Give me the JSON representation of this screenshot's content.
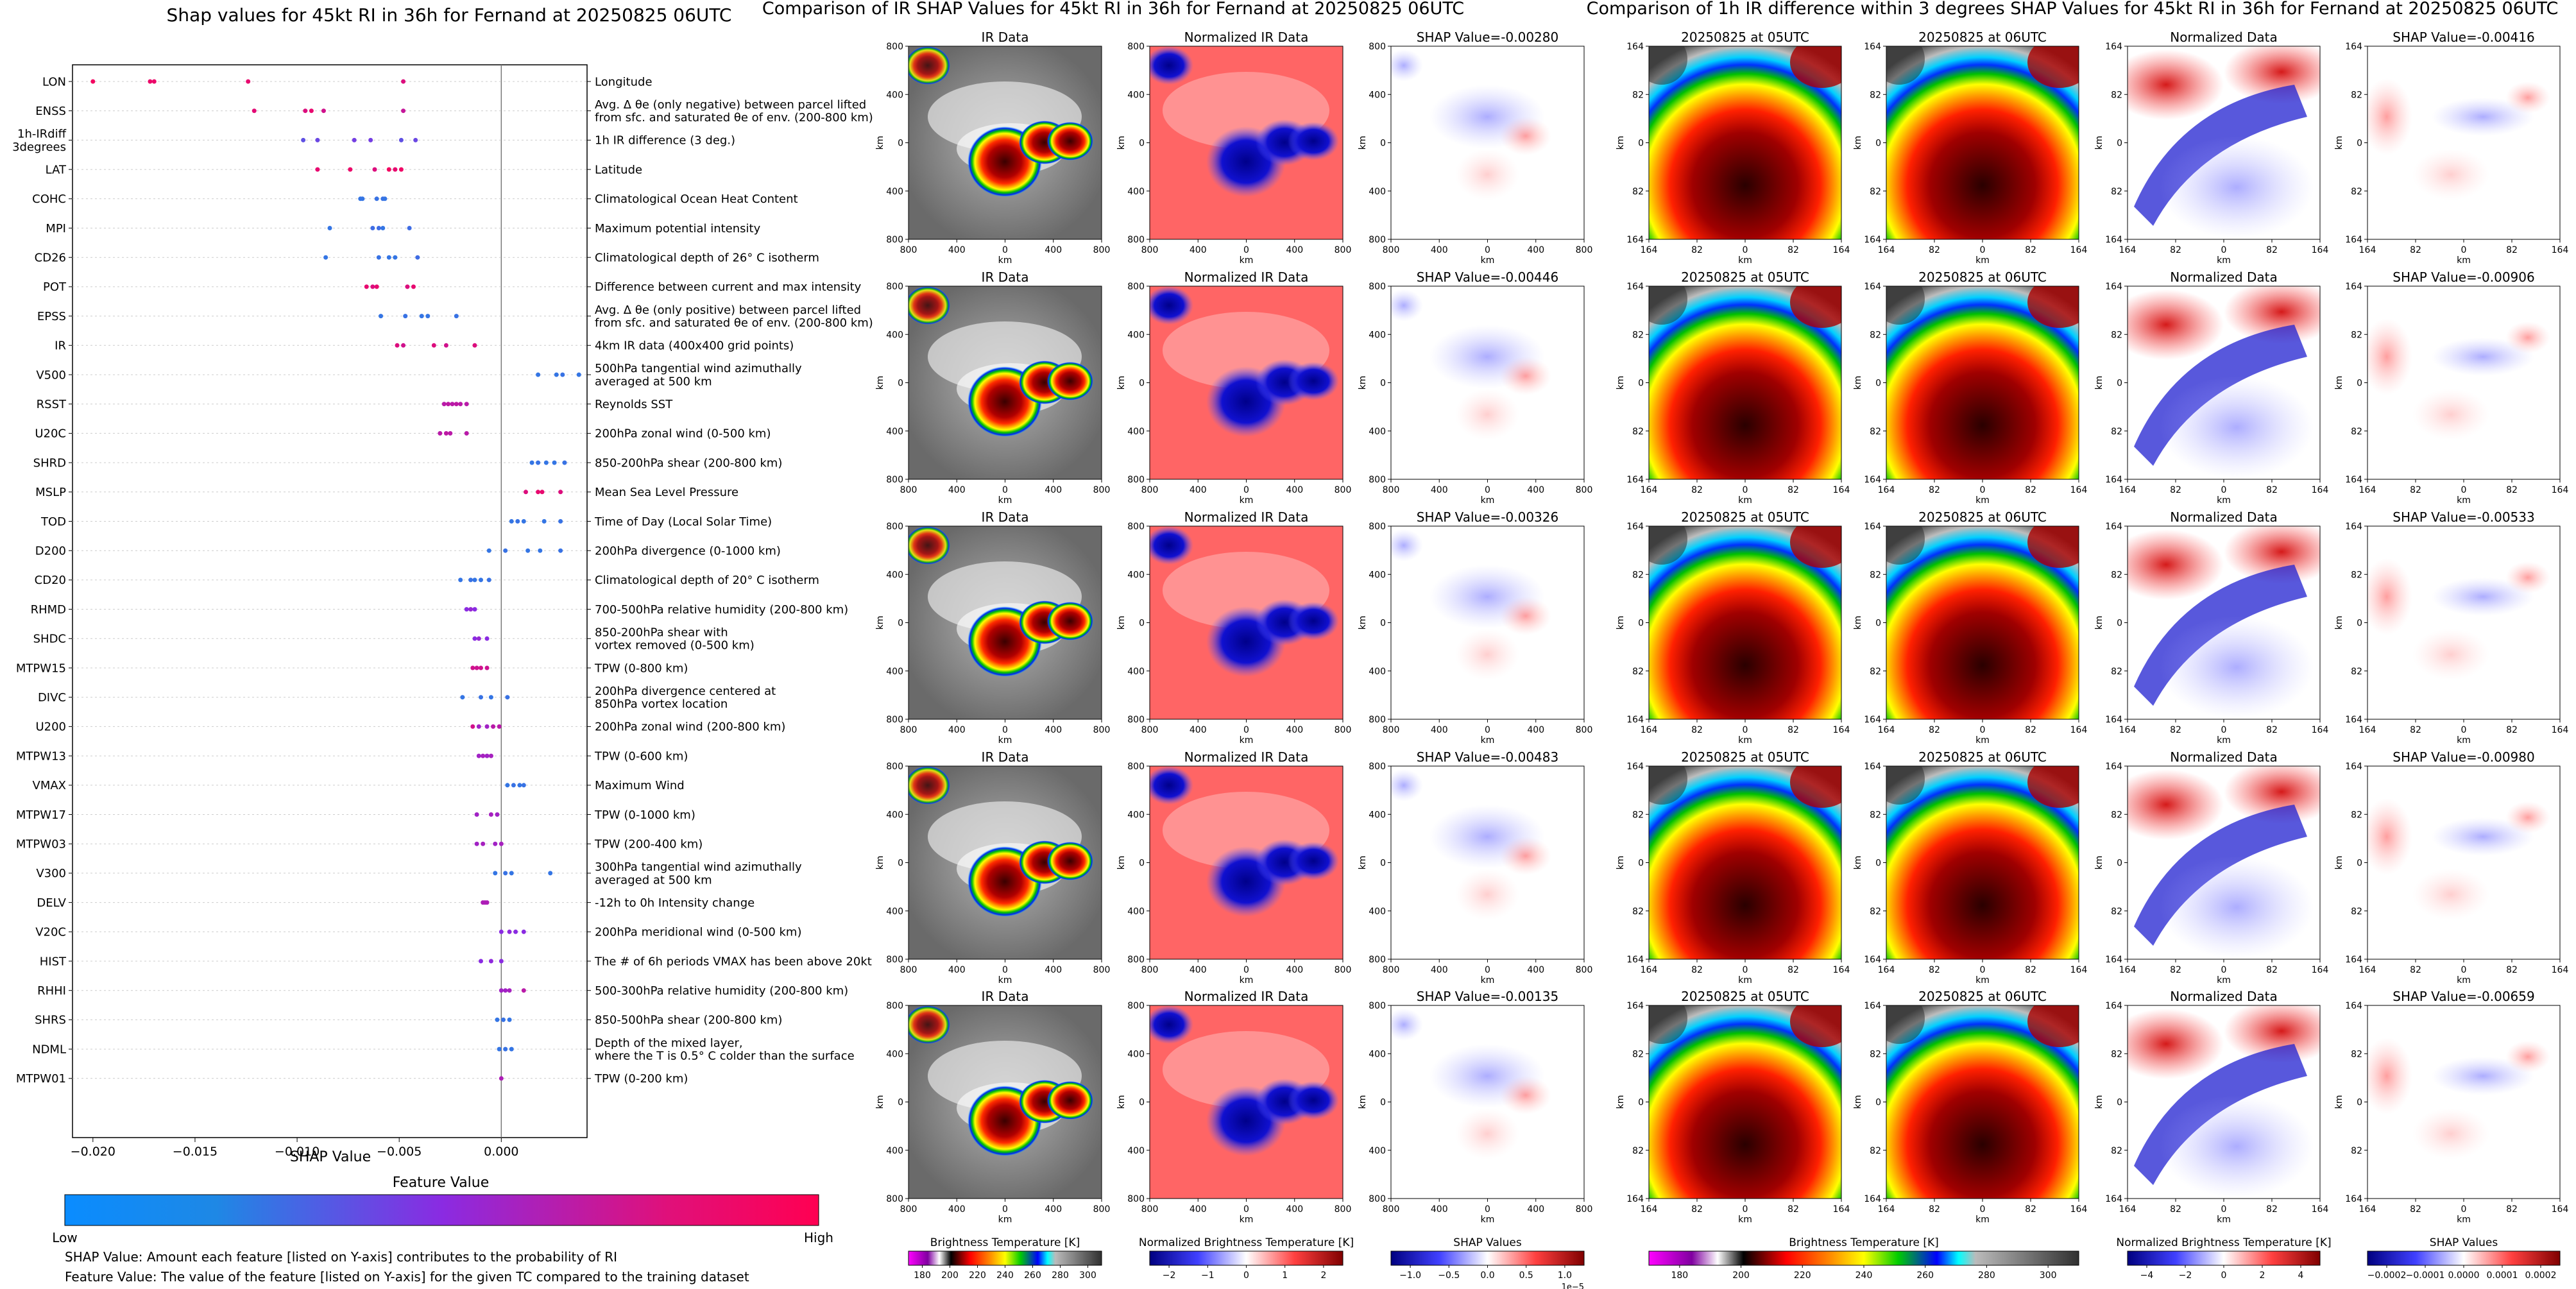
{
  "left_panel": {
    "title": "Shap values for 45kt RI in 36h for Fernand at 20250825 06UTC",
    "xlabel": "SHAP Value",
    "xticks": [
      "−0.020",
      "−0.015",
      "−0.010",
      "−0.005",
      "0.000"
    ],
    "colorbar_title": "Feature Value",
    "colorbar_low": "Low",
    "colorbar_high": "High",
    "footnote1": "SHAP Value: Amount each feature [listed on Y-axis] contributes to the probability of RI",
    "footnote2": "Feature Value: The value of the feature [listed on Y-axis] for the given TC compared to the training dataset"
  },
  "middle_panel": {
    "title": "Comparison of IR SHAP Values for 45kt RI in 36h for Fernand at 20250825 06UTC",
    "col_titles": [
      "IR Data",
      "Normalized IR Data"
    ],
    "shap_titles": [
      "SHAP Value=-0.00280",
      "SHAP Value=-0.00446",
      "SHAP Value=-0.00326",
      "SHAP Value=-0.00483",
      "SHAP Value=-0.00135"
    ],
    "axis_label": "km",
    "ticks_y": [
      "800",
      "400",
      "0",
      "400",
      "800"
    ],
    "ticks_x": [
      "800",
      "400",
      "0",
      "400",
      "800"
    ],
    "cb1_label": "Brightness Temperature [K]",
    "cb1_ticks": [
      "180",
      "200",
      "220",
      "240",
      "260",
      "280",
      "300"
    ],
    "cb2_label": "Normalized Brightness Temperature [K]",
    "cb2_ticks": [
      "−2",
      "−1",
      "0",
      "1",
      "2"
    ],
    "cb3_label": "SHAP Values",
    "cb3_ticks": [
      "−1.0",
      "−0.5",
      "0.0",
      "0.5",
      "1.0"
    ],
    "cb3_exp": "1e−5"
  },
  "right_panel": {
    "title": "Comparison of 1h IR difference within 3 degrees SHAP Values for 45kt RI in 36h for Fernand at 20250825 06UTC",
    "col_titles": [
      "20250825 at 05UTC",
      "20250825 at 06UTC",
      "Normalized Data"
    ],
    "shap_titles": [
      "SHAP Value=-0.00416",
      "SHAP Value=-0.00906",
      "SHAP Value=-0.00533",
      "SHAP Value=-0.00980",
      "SHAP Value=-0.00659"
    ],
    "axis_label": "km",
    "ticks_y": [
      "164",
      "82",
      "0",
      "82",
      "164"
    ],
    "ticks_x": [
      "164",
      "82",
      "0",
      "82",
      "164"
    ],
    "cb1_label": "Brightness Temperature [K]",
    "cb1_ticks": [
      "180",
      "200",
      "220",
      "240",
      "260",
      "280",
      "300"
    ],
    "cb2_label": "Normalized Brightness Temperature [K]",
    "cb2_ticks": [
      "−4",
      "−2",
      "0",
      "2",
      "4"
    ],
    "cb3_label": "SHAP Values",
    "cb3_ticks": [
      "−0.0002",
      "−0.0001",
      "0.0000",
      "0.0001",
      "0.0002"
    ]
  },
  "colors": {
    "low": "#1e88e5",
    "mid": "#8a2be2",
    "high": "#ff0052",
    "zero_line": "#777777",
    "neg": "#0000cc",
    "pos": "#cc0000"
  },
  "chart_data": {
    "type": "scatter",
    "title": "Shap values for 45kt RI in 36h for Fernand at 20250825 06UTC",
    "xlabel": "SHAP Value",
    "xlim": [
      -0.021,
      0.0042
    ],
    "features": [
      {
        "code": "LON",
        "desc": "Longitude",
        "points": [
          [
            -0.02,
            0.95
          ],
          [
            -0.0172,
            0.92
          ],
          [
            -0.017,
            0.92
          ],
          [
            -0.0124,
            0.9
          ],
          [
            -0.0048,
            0.85
          ]
        ]
      },
      {
        "code": "ENSS",
        "desc": "Avg. Δ θe (only negative) between parcel lifted\nfrom sfc. and saturated θe of env. (200-800 km)",
        "points": [
          [
            -0.0121,
            0.88
          ],
          [
            -0.0096,
            0.85
          ],
          [
            -0.0093,
            0.9
          ],
          [
            -0.0087,
            0.8
          ],
          [
            -0.0048,
            0.75
          ]
        ]
      },
      {
        "code": "1h-IRdiff\n3degrees",
        "desc": "1h IR difference (3 deg.)",
        "points": [
          [
            -0.0097,
            0.3
          ],
          [
            -0.009,
            0.35
          ],
          [
            -0.0072,
            0.4
          ],
          [
            -0.0064,
            0.4
          ],
          [
            -0.0049,
            0.3
          ],
          [
            -0.0042,
            0.35
          ]
        ]
      },
      {
        "code": "LAT",
        "desc": "Latitude",
        "points": [
          [
            -0.009,
            0.9
          ],
          [
            -0.0074,
            0.92
          ],
          [
            -0.0062,
            0.85
          ],
          [
            -0.0055,
            0.95
          ],
          [
            -0.0052,
            0.9
          ],
          [
            -0.0049,
            0.93
          ]
        ]
      },
      {
        "code": "COHC",
        "desc": "Climatological Ocean Heat Content",
        "points": [
          [
            -0.0069,
            0.1
          ],
          [
            -0.0068,
            0.1
          ],
          [
            -0.0061,
            0.12
          ],
          [
            -0.0058,
            0.12
          ],
          [
            -0.0057,
            0.1
          ]
        ]
      },
      {
        "code": "MPI",
        "desc": "Maximum potential intensity",
        "points": [
          [
            -0.0084,
            0.1
          ],
          [
            -0.0063,
            0.15
          ],
          [
            -0.006,
            0.15
          ],
          [
            -0.0058,
            0.1
          ],
          [
            -0.0045,
            0.15
          ]
        ]
      },
      {
        "code": "CD26",
        "desc": "Climatological depth of 26° C isotherm",
        "points": [
          [
            -0.0086,
            0.1
          ],
          [
            -0.006,
            0.12
          ],
          [
            -0.0055,
            0.1
          ],
          [
            -0.0052,
            0.1
          ],
          [
            -0.0041,
            0.15
          ]
        ]
      },
      {
        "code": "POT",
        "desc": "Difference between current and max intensity",
        "points": [
          [
            -0.0066,
            0.9
          ],
          [
            -0.0063,
            0.85
          ],
          [
            -0.0061,
            0.9
          ],
          [
            -0.0046,
            0.85
          ],
          [
            -0.0043,
            0.9
          ]
        ]
      },
      {
        "code": "EPSS",
        "desc": "Avg. Δ θe (only positive) between parcel lifted\nfrom sfc. and saturated θe of env. (200-800 km)",
        "points": [
          [
            -0.0059,
            0.1
          ],
          [
            -0.0047,
            0.12
          ],
          [
            -0.0039,
            0.1
          ],
          [
            -0.0036,
            0.1
          ],
          [
            -0.0022,
            0.12
          ]
        ]
      },
      {
        "code": "IR",
        "desc": "4km IR data (400x400 grid points)",
        "points": [
          [
            -0.0051,
            0.85
          ],
          [
            -0.0048,
            0.8
          ],
          [
            -0.0033,
            0.85
          ],
          [
            -0.0027,
            0.8
          ],
          [
            -0.0013,
            0.85
          ]
        ]
      },
      {
        "code": "V500",
        "desc": "500hPa tangential wind azimuthally\naveraged at 500 km",
        "points": [
          [
            0.0018,
            0.1
          ],
          [
            0.0027,
            0.1
          ],
          [
            0.003,
            0.12
          ],
          [
            0.0038,
            0.1
          ]
        ]
      },
      {
        "code": "RSST",
        "desc": "Reynolds SST",
        "points": [
          [
            -0.0028,
            0.7
          ],
          [
            -0.0026,
            0.72
          ],
          [
            -0.0024,
            0.7
          ],
          [
            -0.0022,
            0.72
          ],
          [
            -0.002,
            0.7
          ],
          [
            -0.0017,
            0.7
          ]
        ]
      },
      {
        "code": "U20C",
        "desc": "200hPa zonal wind (0-500 km)",
        "points": [
          [
            -0.003,
            0.7
          ],
          [
            -0.0027,
            0.72
          ],
          [
            -0.0025,
            0.7
          ],
          [
            -0.0017,
            0.7
          ]
        ]
      },
      {
        "code": "SHRD",
        "desc": "850-200hPa shear (200-800 km)",
        "points": [
          [
            0.0015,
            0.1
          ],
          [
            0.0018,
            0.12
          ],
          [
            0.0022,
            0.1
          ],
          [
            0.0026,
            0.1
          ],
          [
            0.0031,
            0.12
          ]
        ]
      },
      {
        "code": "MSLP",
        "desc": "Mean Sea Level Pressure",
        "points": [
          [
            0.0012,
            0.85
          ],
          [
            0.0018,
            0.9
          ],
          [
            0.002,
            0.9
          ],
          [
            0.0029,
            0.85
          ]
        ]
      },
      {
        "code": "TOD",
        "desc": "Time of Day (Local Solar Time)",
        "points": [
          [
            0.0005,
            0.1
          ],
          [
            0.0008,
            0.12
          ],
          [
            0.0011,
            0.1
          ],
          [
            0.0021,
            0.1
          ],
          [
            0.0029,
            0.12
          ]
        ]
      },
      {
        "code": "D200",
        "desc": "200hPa divergence (0-1000 km)",
        "points": [
          [
            -0.0006,
            0.1
          ],
          [
            0.0002,
            0.12
          ],
          [
            0.0013,
            0.1
          ],
          [
            0.0019,
            0.1
          ],
          [
            0.0029,
            0.12
          ]
        ]
      },
      {
        "code": "CD20",
        "desc": "Climatological depth of 20° C isotherm",
        "points": [
          [
            -0.002,
            0.1
          ],
          [
            -0.0015,
            0.12
          ],
          [
            -0.0013,
            0.1
          ],
          [
            -0.001,
            0.1
          ],
          [
            -0.0006,
            0.12
          ]
        ]
      },
      {
        "code": "RHMD",
        "desc": "700-500hPa relative humidity (200-800 km)",
        "points": [
          [
            -0.0017,
            0.5
          ],
          [
            -0.0015,
            0.55
          ],
          [
            -0.0013,
            0.5
          ]
        ]
      },
      {
        "code": "SHDC",
        "desc": "850-200hPa shear with\nvortex removed (0-500 km)",
        "points": [
          [
            -0.0013,
            0.5
          ],
          [
            -0.0011,
            0.55
          ],
          [
            -0.0007,
            0.5
          ]
        ]
      },
      {
        "code": "MTPW15",
        "desc": "TPW (0-800 km)",
        "points": [
          [
            -0.0014,
            0.8
          ],
          [
            -0.0012,
            0.78
          ],
          [
            -0.001,
            0.8
          ],
          [
            -0.0007,
            0.78
          ]
        ]
      },
      {
        "code": "DIVC",
        "desc": "200hPa divergence centered at\n850hPa vortex location",
        "points": [
          [
            -0.0019,
            0.1
          ],
          [
            -0.001,
            0.12
          ],
          [
            -0.0005,
            0.1
          ],
          [
            0.0003,
            0.12
          ]
        ]
      },
      {
        "code": "U200",
        "desc": "200hPa zonal wind (200-800 km)",
        "points": [
          [
            -0.0014,
            0.8
          ],
          [
            -0.0011,
            0.6
          ],
          [
            -0.0007,
            0.6
          ],
          [
            -0.0004,
            0.7
          ],
          [
            -0.0001,
            0.7
          ]
        ]
      },
      {
        "code": "MTPW13",
        "desc": "TPW (0-600 km)",
        "points": [
          [
            -0.0011,
            0.6
          ],
          [
            -0.0009,
            0.62
          ],
          [
            -0.0007,
            0.6
          ],
          [
            -0.0005,
            0.62
          ]
        ]
      },
      {
        "code": "VMAX",
        "desc": "Maximum Wind",
        "points": [
          [
            0.0003,
            0.1
          ],
          [
            0.0006,
            0.12
          ],
          [
            0.0009,
            0.1
          ],
          [
            0.0011,
            0.12
          ]
        ]
      },
      {
        "code": "MTPW17",
        "desc": "TPW (0-1000 km)",
        "points": [
          [
            -0.0012,
            0.6
          ],
          [
            -0.0005,
            0.62
          ],
          [
            -0.0002,
            0.6
          ]
        ]
      },
      {
        "code": "MTPW03",
        "desc": "TPW (200-400 km)",
        "points": [
          [
            -0.0012,
            0.6
          ],
          [
            -0.0009,
            0.62
          ],
          [
            -0.0003,
            0.6
          ],
          [
            0.0,
            0.62
          ]
        ]
      },
      {
        "code": "V300",
        "desc": "300hPa tangential wind azimuthally\naveraged at 500 km",
        "points": [
          [
            -0.0003,
            0.1
          ],
          [
            0.0002,
            0.12
          ],
          [
            0.0005,
            0.1
          ],
          [
            0.0024,
            0.1
          ]
        ]
      },
      {
        "code": "DELV",
        "desc": "-12h to 0h Intensity change",
        "points": [
          [
            -0.0009,
            0.65
          ],
          [
            -0.0008,
            0.65
          ],
          [
            -0.0007,
            0.65
          ]
        ]
      },
      {
        "code": "V20C",
        "desc": "200hPa meridional wind (0-500 km)",
        "points": [
          [
            0.0,
            0.5
          ],
          [
            0.0004,
            0.52
          ],
          [
            0.0007,
            0.5
          ],
          [
            0.0011,
            0.5
          ]
        ]
      },
      {
        "code": "HIST",
        "desc": "The # of 6h periods VMAX has been above 20kt",
        "points": [
          [
            -0.001,
            0.5
          ],
          [
            -0.0005,
            0.52
          ],
          [
            0.0,
            0.5
          ]
        ]
      },
      {
        "code": "RHHI",
        "desc": "500-300hPa relative humidity (200-800 km)",
        "points": [
          [
            0.0,
            0.6
          ],
          [
            0.0002,
            0.6
          ],
          [
            0.0004,
            0.62
          ],
          [
            0.0011,
            0.7
          ]
        ]
      },
      {
        "code": "SHRS",
        "desc": "850-500hPa shear (200-800 km)",
        "points": [
          [
            -0.0002,
            0.1
          ],
          [
            0.0001,
            0.12
          ],
          [
            0.0004,
            0.1
          ]
        ]
      },
      {
        "code": "NDML",
        "desc": "Depth of the mixed layer,\nwhere the T is 0.5° C colder than the surface",
        "points": [
          [
            -0.0001,
            0.1
          ],
          [
            0.0002,
            0.12
          ],
          [
            0.0005,
            0.1
          ]
        ]
      },
      {
        "code": "MTPW01",
        "desc": "TPW (0-200 km)",
        "points": [
          [
            0.0,
            0.65
          ]
        ]
      }
    ]
  }
}
